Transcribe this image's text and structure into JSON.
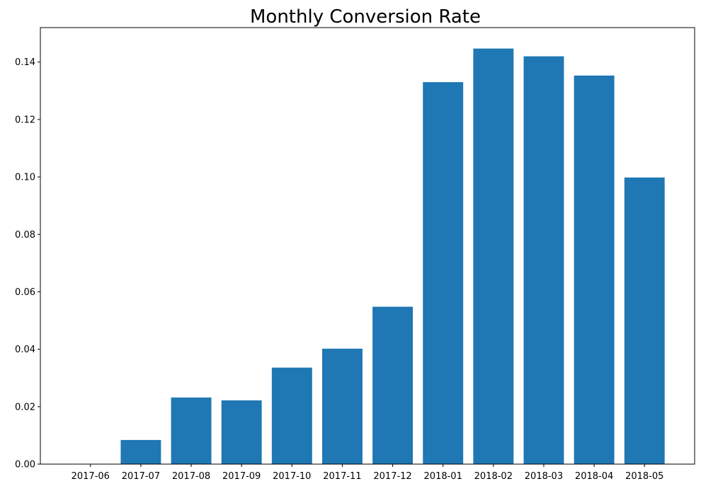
{
  "chart_data": {
    "type": "bar",
    "title": "Monthly Conversion Rate",
    "xlabel": "",
    "ylabel": "",
    "categories": [
      "2017-06",
      "2017-07",
      "2017-08",
      "2017-09",
      "2017-10",
      "2017-11",
      "2017-12",
      "2018-01",
      "2018-02",
      "2018-03",
      "2018-04",
      "2018-05"
    ],
    "values": [
      0.0,
      0.0084,
      0.0232,
      0.0222,
      0.0336,
      0.0402,
      0.0548,
      0.133,
      0.1447,
      0.142,
      0.1353,
      0.0998
    ],
    "ylim": [
      0,
      0.152
    ],
    "yticks": [
      0.0,
      0.02,
      0.04,
      0.06,
      0.08,
      0.1,
      0.12,
      0.14
    ],
    "ytick_labels": [
      "0.00",
      "0.02",
      "0.04",
      "0.06",
      "0.08",
      "0.10",
      "0.12",
      "0.14"
    ],
    "grid": false,
    "legend": "none",
    "bar_color": "#1f77b4"
  }
}
